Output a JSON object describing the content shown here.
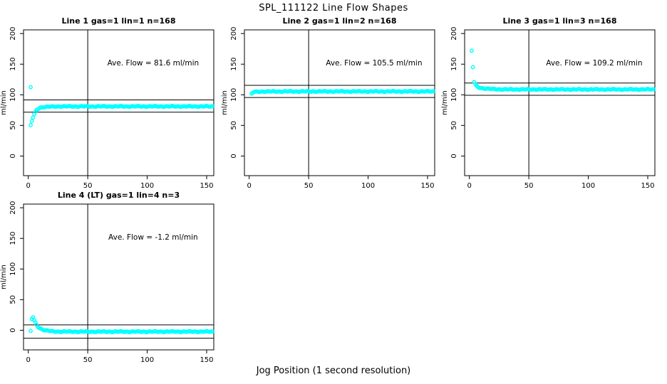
{
  "page": {
    "title": "SPL_111122  Line Flow Shapes",
    "x_axis_label": "Jog Position (1 second resolution)"
  },
  "style": {
    "point_color": "#00FFFF",
    "axis_color": "#000000",
    "background": "#FFFFFF"
  },
  "chart_data": [
    {
      "type": "scatter",
      "title": "Line 1 gas=1 lin=1 n=168",
      "annotation": "Ave. Flow =  81.6  ml/min",
      "ave_flow_ml_min": 81.6,
      "ylabel": "ml/min",
      "xlim": [
        -4,
        156
      ],
      "ylim": [
        -32,
        206
      ],
      "xticks": [
        0,
        50,
        100,
        150
      ],
      "yticks": [
        0,
        50,
        100,
        150,
        200
      ],
      "vline_x": 50,
      "hlines": [
        91.6,
        71.6
      ],
      "outliers": [
        [
          2,
          112.5
        ]
      ],
      "curve_keypoints": [
        [
          2,
          50
        ],
        [
          3,
          57
        ],
        [
          4,
          63
        ],
        [
          5,
          68
        ],
        [
          6,
          72
        ],
        [
          7,
          75
        ],
        [
          8,
          77
        ],
        [
          10,
          79
        ],
        [
          13,
          80
        ],
        [
          18,
          80.5
        ],
        [
          25,
          81
        ],
        [
          60,
          81
        ],
        [
          155,
          81
        ]
      ],
      "x_start": 2,
      "x_end": 155
    },
    {
      "type": "scatter",
      "title": "Line 2 gas=1 lin=2 n=168",
      "annotation": "Ave. Flow =  105.5  ml/min",
      "ave_flow_ml_min": 105.5,
      "ylabel": "ml/min",
      "xlim": [
        -4,
        156
      ],
      "ylim": [
        -32,
        206
      ],
      "xticks": [
        0,
        50,
        100,
        150
      ],
      "yticks": [
        0,
        50,
        100,
        150,
        200
      ],
      "vline_x": 50,
      "hlines": [
        115.5,
        95.5
      ],
      "outliers": [],
      "curve_keypoints": [
        [
          2,
          101.5
        ],
        [
          3,
          103.5
        ],
        [
          4,
          104.5
        ],
        [
          6,
          105
        ],
        [
          10,
          105.3
        ],
        [
          30,
          105.5
        ],
        [
          155,
          105.5
        ]
      ],
      "x_start": 2,
      "x_end": 155
    },
    {
      "type": "scatter",
      "title": "Line 3 gas=1 lin=3 n=168",
      "annotation": "Ave. Flow =  109.2  ml/min",
      "ave_flow_ml_min": 109.2,
      "ylabel": "ml/min",
      "xlim": [
        -4,
        156
      ],
      "ylim": [
        -32,
        206
      ],
      "xticks": [
        0,
        50,
        100,
        150
      ],
      "yticks": [
        0,
        50,
        100,
        150,
        200
      ],
      "vline_x": 50,
      "hlines": [
        119.2,
        99.2
      ],
      "outliers": [
        [
          2,
          172
        ],
        [
          3,
          145
        ]
      ],
      "curve_keypoints": [
        [
          4,
          121
        ],
        [
          5,
          117
        ],
        [
          6,
          114
        ],
        [
          8,
          112
        ],
        [
          10,
          111
        ],
        [
          14,
          110
        ],
        [
          20,
          109.3
        ],
        [
          30,
          108.8
        ],
        [
          155,
          108.8
        ]
      ],
      "x_start": 4,
      "x_end": 155
    },
    {
      "type": "scatter",
      "title": "Line 4 (LT) gas=1 lin=4 n=3",
      "annotation": "Ave. Flow =  -1.2  ml/min",
      "ave_flow_ml_min": -1.2,
      "ylabel": "ml/min",
      "xlim": [
        -4,
        156
      ],
      "ylim": [
        -32,
        206
      ],
      "xticks": [
        0,
        50,
        100,
        150
      ],
      "yticks": [
        0,
        50,
        100,
        150,
        200
      ],
      "vline_x": 50,
      "hlines": [
        8.8,
        -13
      ],
      "outliers": [
        [
          2,
          -1
        ],
        [
          3,
          18
        ],
        [
          4,
          21
        ]
      ],
      "curve_keypoints": [
        [
          4,
          21
        ],
        [
          5,
          16
        ],
        [
          6,
          12
        ],
        [
          7,
          9
        ],
        [
          8,
          6
        ],
        [
          9,
          4.5
        ],
        [
          10,
          3
        ],
        [
          12,
          1.5
        ],
        [
          14,
          0
        ],
        [
          17,
          -1
        ],
        [
          20,
          -1.8
        ],
        [
          25,
          -2.2
        ],
        [
          60,
          -2.3
        ],
        [
          155,
          -2.2
        ]
      ],
      "x_start": 4,
      "x_end": 155
    }
  ]
}
